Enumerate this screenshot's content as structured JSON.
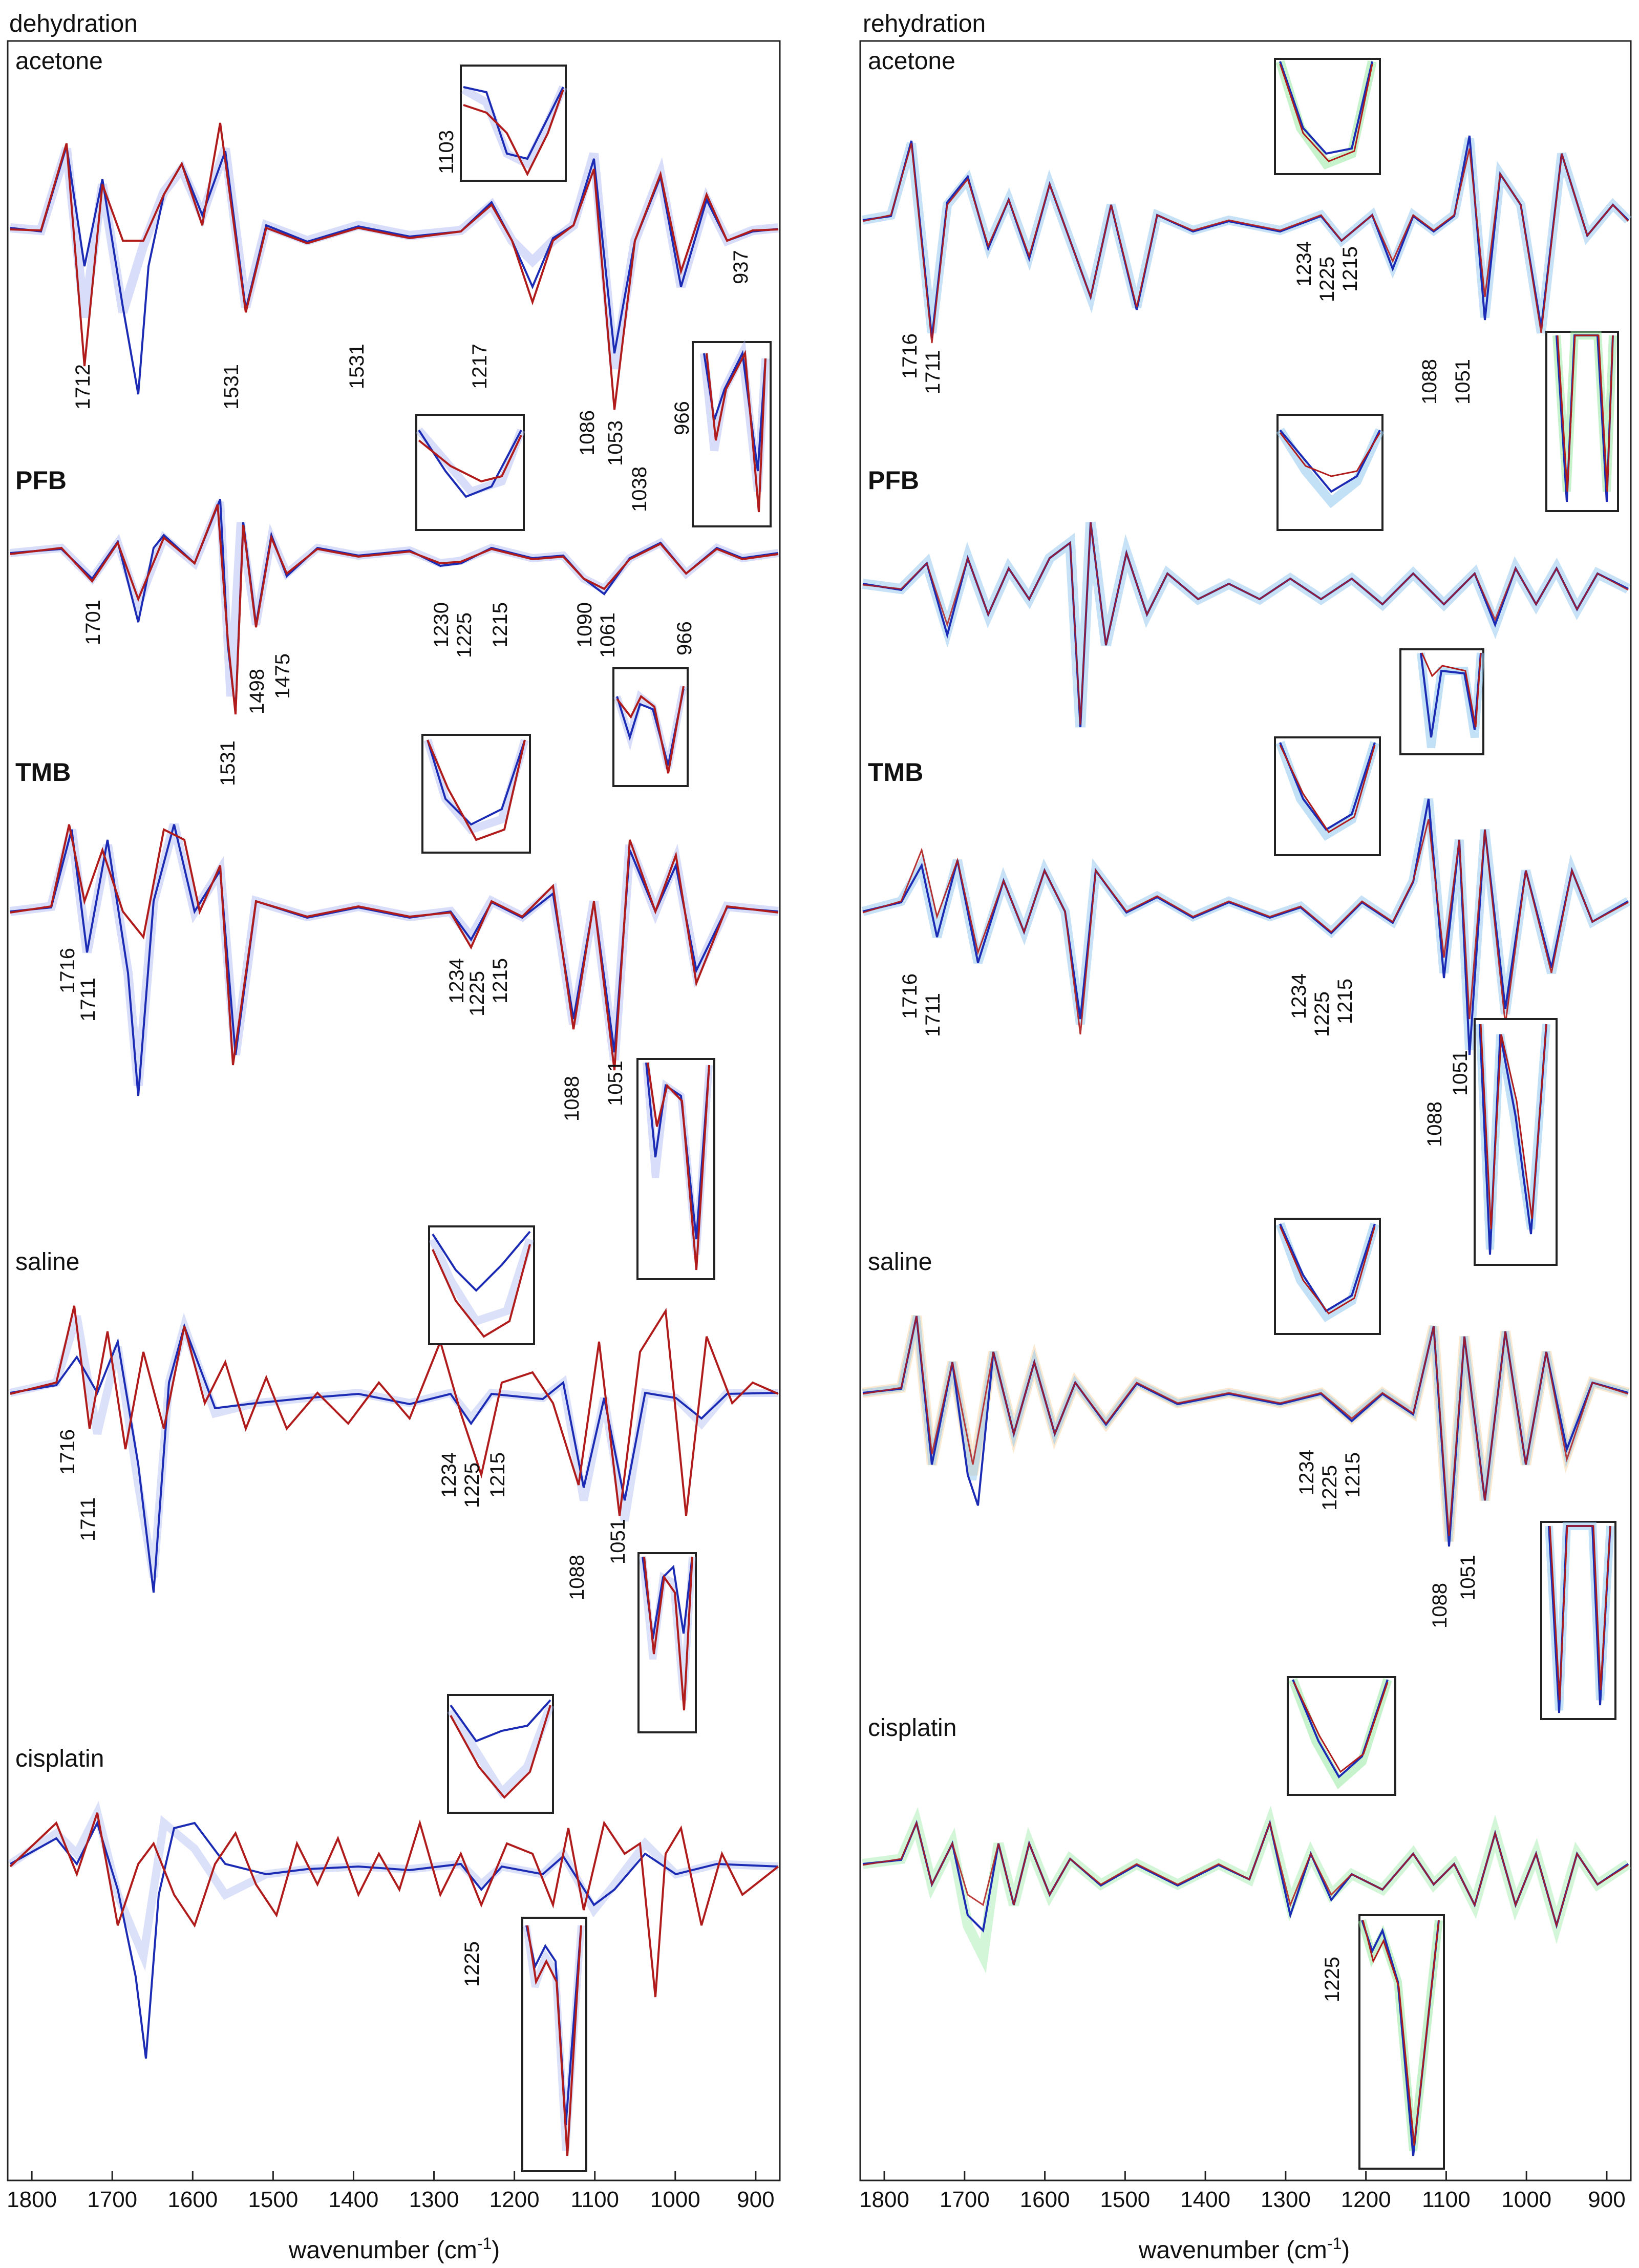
{
  "panels": [
    {
      "id": "dehydration",
      "title": "dehydration"
    },
    {
      "id": "rehydration",
      "title": "rehydration"
    }
  ],
  "colors": {
    "series_red": "#b01c1c",
    "series_blue": "#1c2bb3",
    "band_blue": "#a8b4f2",
    "band_green": "#8fe89a",
    "band_orange": "#f3c27a"
  },
  "chart_data": [
    {
      "type": "line",
      "panel": "dehydration",
      "xlabel": "wavenumber (cm-1)",
      "xlim": [
        1830,
        870
      ],
      "x_reversed": true,
      "xticks": [
        1800,
        1700,
        1600,
        1500,
        1400,
        1300,
        1200,
        1100,
        1000,
        900
      ],
      "groups": [
        {
          "label": "acetone",
          "bold": false,
          "peaks": [
            "1712",
            "1531",
            "1531",
            "1217",
            "1103",
            "1086",
            "1053",
            "966",
            "937"
          ]
        },
        {
          "label": "PFB",
          "bold": true,
          "peaks": [
            "1701",
            "1531",
            "1498",
            "1475",
            "1230",
            "1225",
            "1215",
            "1090",
            "1061",
            "1038",
            "966"
          ]
        },
        {
          "label": "TMB",
          "bold": true,
          "peaks": [
            "1716",
            "1711",
            "1234",
            "1225",
            "1215",
            "1088",
            "1051"
          ]
        },
        {
          "label": "saline",
          "bold": false,
          "peaks": [
            "1716",
            "1711",
            "1234",
            "1225",
            "1215",
            "1088",
            "1051"
          ]
        },
        {
          "label": "cisplatin",
          "bold": false,
          "peaks": [
            "1225"
          ]
        }
      ]
    },
    {
      "type": "line",
      "panel": "rehydration",
      "xlabel": "wavenumber (cm-1)",
      "xlim": [
        1830,
        870
      ],
      "x_reversed": true,
      "xticks": [
        1800,
        1700,
        1600,
        1500,
        1400,
        1300,
        1200,
        1100,
        1000,
        900
      ],
      "groups": [
        {
          "label": "acetone",
          "bold": false,
          "peaks": [
            "1716",
            "1711",
            "1234",
            "1225",
            "1215",
            "1088",
            "1051"
          ]
        },
        {
          "label": "PFB",
          "bold": true,
          "peaks": []
        },
        {
          "label": "TMB",
          "bold": true,
          "peaks": [
            "1716",
            "1711",
            "1234",
            "1225",
            "1215",
            "1088",
            "1051"
          ]
        },
        {
          "label": "saline",
          "bold": false,
          "peaks": [
            "1234",
            "1225",
            "1215",
            "1088",
            "1051"
          ]
        },
        {
          "label": "cisplatin",
          "bold": false,
          "peaks": [
            "1225"
          ]
        }
      ]
    }
  ]
}
